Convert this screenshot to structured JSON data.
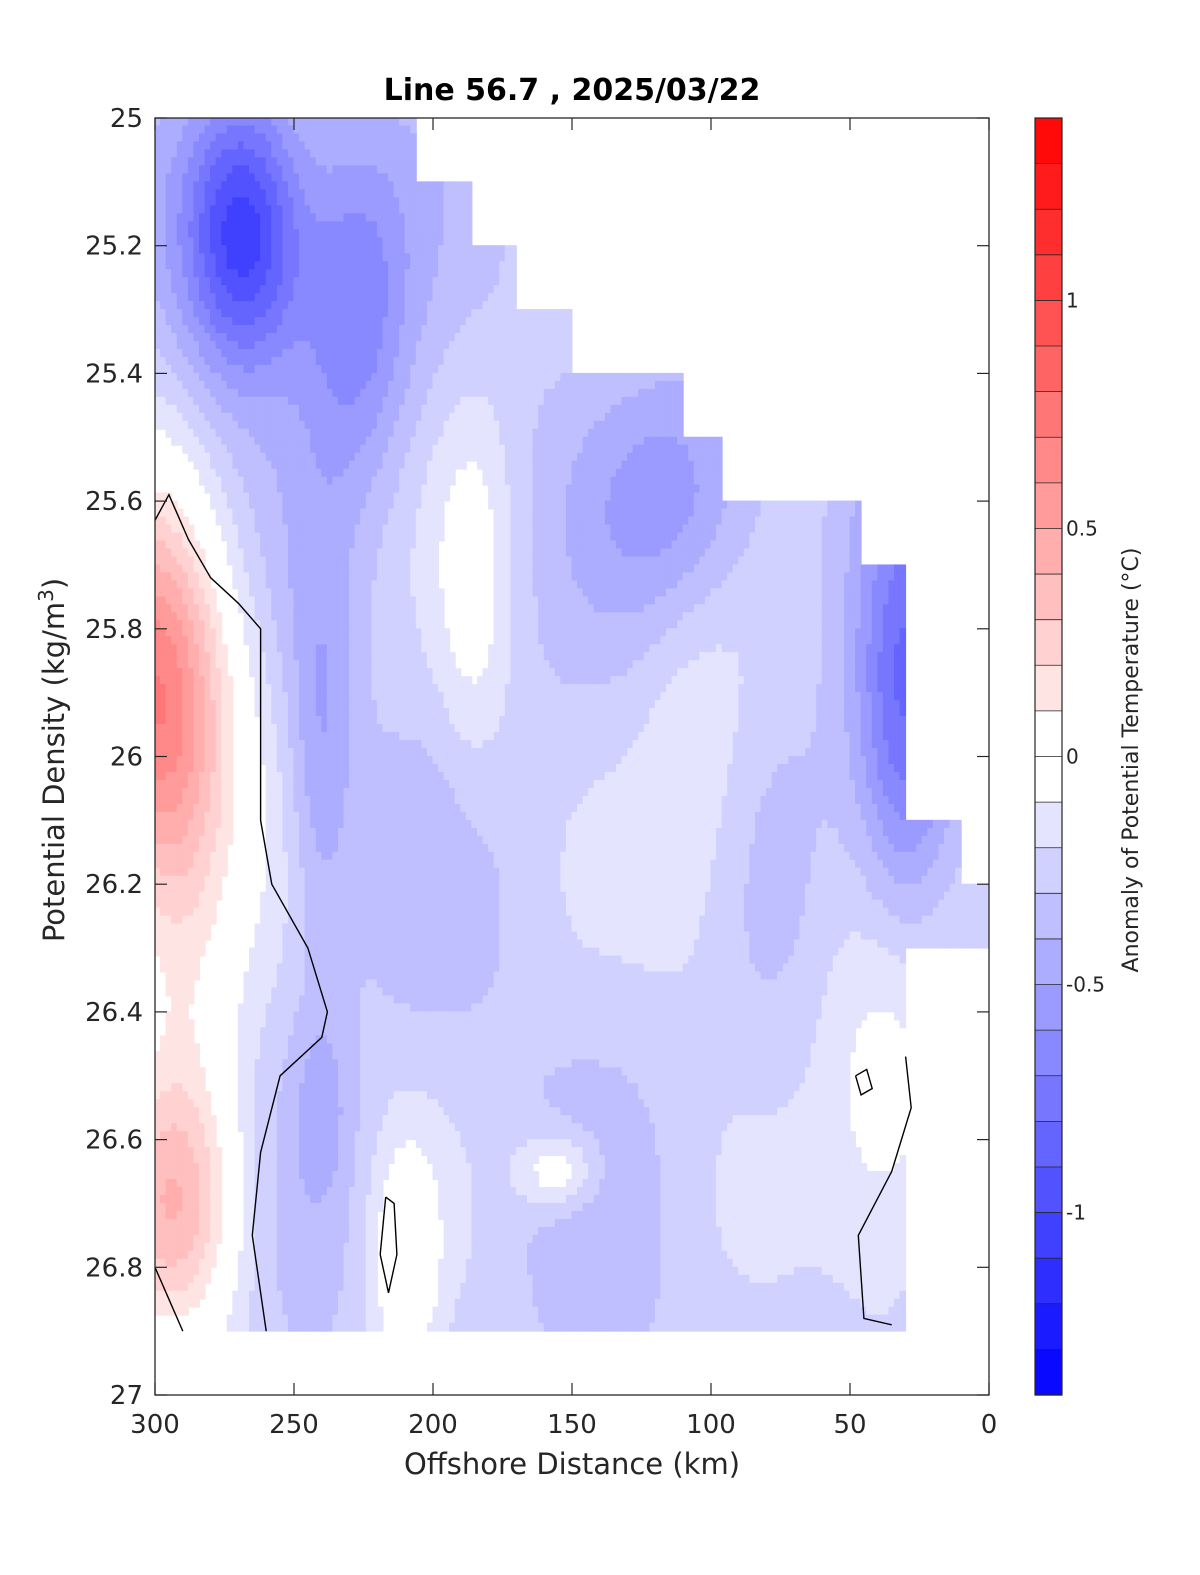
{
  "chart_data": {
    "type": "contour",
    "title": "Line 56.7 , 2025/03/22",
    "xlabel": "Offshore Distance (km)",
    "ylabel": "Potential Density (kg/m",
    "ylabel_superscript": "3",
    "ylabel_suffix": ")",
    "xlim": [
      300,
      0
    ],
    "ylim": [
      25,
      27
    ],
    "y_reversed": true,
    "x_ticks": [
      "300",
      "250",
      "200",
      "150",
      "100",
      "50",
      "0"
    ],
    "y_ticks": [
      "25",
      "25.2",
      "25.4",
      "25.6",
      "25.8",
      "26",
      "26.2",
      "26.4",
      "26.6",
      "26.8",
      "27"
    ],
    "colorbar": {
      "label": "Anomaly of Potential Temperature (°C)",
      "range": [
        -1.4,
        1.4
      ],
      "ticks": [
        "1",
        "0.5",
        "0",
        "-0.5",
        "-1"
      ],
      "step": 0.1,
      "colormap": "blue-white-red"
    },
    "zero_contour": "black line",
    "data_description_values": {
      "warm_core": {
        "x_km": 295,
        "density": 25.9,
        "anomaly": 0.7
      },
      "cold_core": {
        "x_km": 270,
        "density": 25.2,
        "anomaly": -1.2
      },
      "coastal_cold": {
        "x_km": 30,
        "density": 25.9,
        "anomaly": -0.9
      }
    }
  },
  "colors": {
    "max": "#ff0000",
    "zero": "#ffffff",
    "min": "#0000ff",
    "contour_line": "#000000"
  }
}
